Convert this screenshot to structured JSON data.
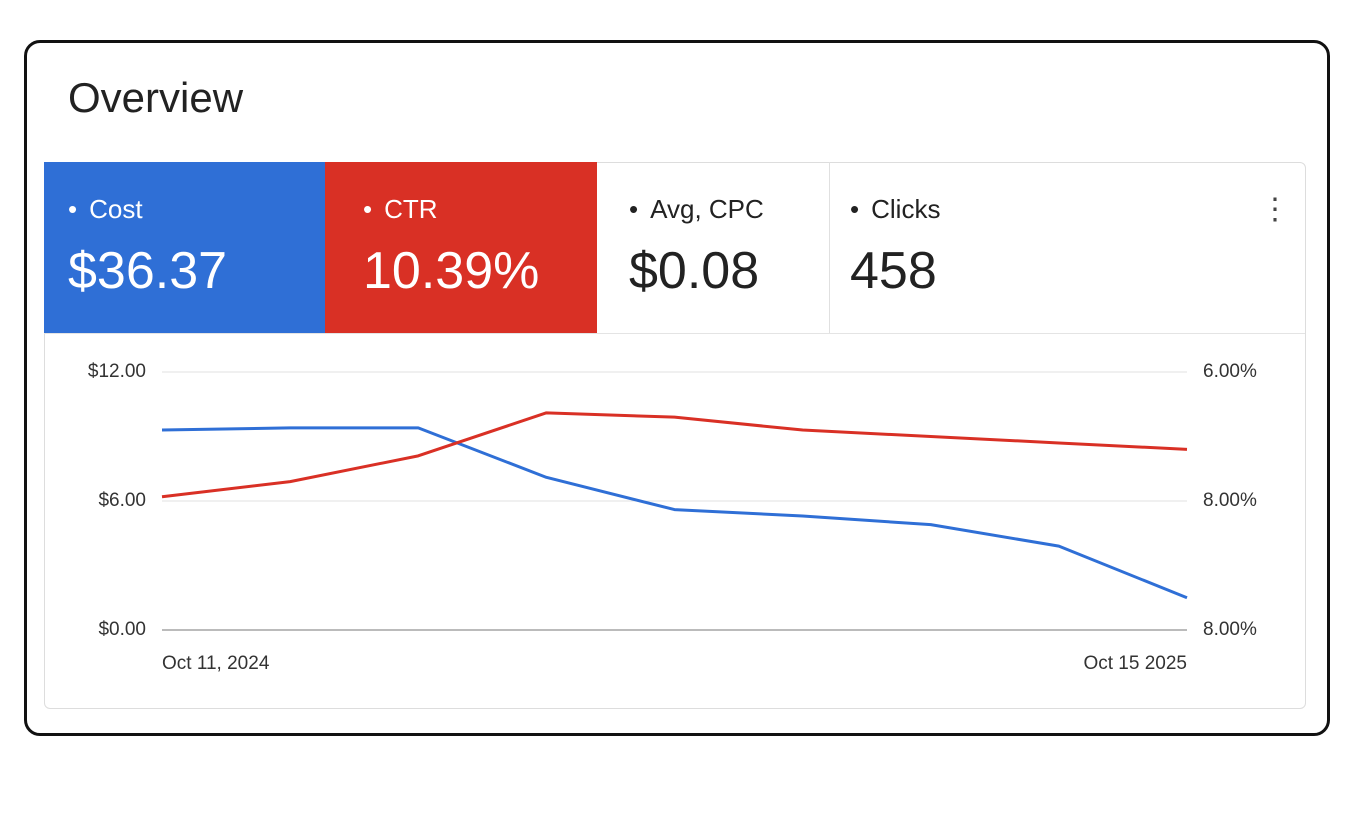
{
  "header": {
    "title": "Overview"
  },
  "metrics": [
    {
      "label": "Cost",
      "value": "$36.37"
    },
    {
      "label": "CTR",
      "value": "10.39%"
    },
    {
      "label": "Avg, CPC",
      "value": "$0.08"
    },
    {
      "label": "Clicks",
      "value": "458"
    }
  ],
  "chart_data": {
    "type": "line",
    "categories": [
      "Oct 11, 2024",
      null,
      null,
      null,
      null,
      null,
      null,
      null,
      "Oct 15 2025"
    ],
    "series": [
      {
        "name": "Cost",
        "color": "#2f6fd6",
        "values": [
          9.3,
          9.4,
          9.4,
          7.1,
          5.6,
          5.3,
          4.9,
          3.9,
          1.5
        ]
      },
      {
        "name": "CTR",
        "color": "#d93025",
        "values": [
          6.2,
          6.9,
          8.1,
          10.1,
          9.9,
          9.3,
          9.0,
          8.7,
          8.4
        ]
      }
    ],
    "ylim": [
      0,
      12
    ],
    "yticks": [
      {
        "value": 0,
        "label": "$0.00"
      },
      {
        "value": 6,
        "label": "$6.00"
      },
      {
        "value": 12,
        "label": "$12.00"
      }
    ],
    "y2_tick_labels": [
      "6.00%",
      "8.00%",
      "8.00%"
    ],
    "grid": true
  }
}
